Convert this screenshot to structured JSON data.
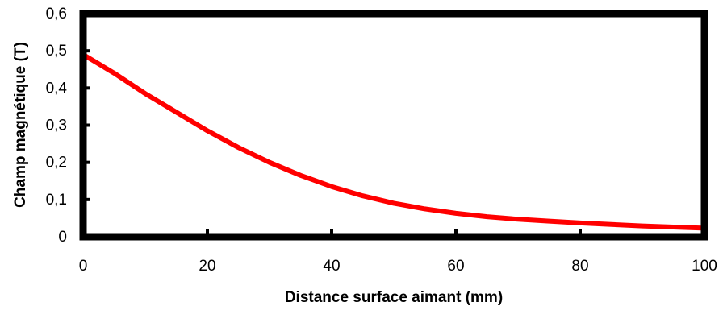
{
  "chart_data": {
    "type": "line",
    "title": "",
    "xlabel": "Distance surface aimant (mm)",
    "ylabel": "Champ magnétique (T)",
    "xlim": [
      0,
      100
    ],
    "ylim": [
      0,
      0.6
    ],
    "x_ticks": [
      0,
      20,
      40,
      60,
      80,
      100
    ],
    "x_tick_labels": [
      "0",
      "20",
      "40",
      "60",
      "80",
      "100"
    ],
    "y_ticks": [
      0,
      0.1,
      0.2,
      0.3,
      0.4,
      0.5,
      0.6
    ],
    "y_tick_labels": [
      "0",
      "0,1",
      "0,2",
      "0,3",
      "0,4",
      "0,5",
      "0,6"
    ],
    "grid": false,
    "legend": "none",
    "series": [
      {
        "color": "#ff0000",
        "x": [
          0,
          5,
          10,
          15,
          20,
          25,
          30,
          35,
          40,
          45,
          50,
          55,
          60,
          65,
          70,
          75,
          80,
          85,
          90,
          95,
          100
        ],
        "y": [
          0.49,
          0.44,
          0.385,
          0.335,
          0.285,
          0.24,
          0.2,
          0.165,
          0.135,
          0.11,
          0.09,
          0.075,
          0.063,
          0.054,
          0.047,
          0.042,
          0.037,
          0.033,
          0.029,
          0.026,
          0.023
        ]
      }
    ]
  }
}
